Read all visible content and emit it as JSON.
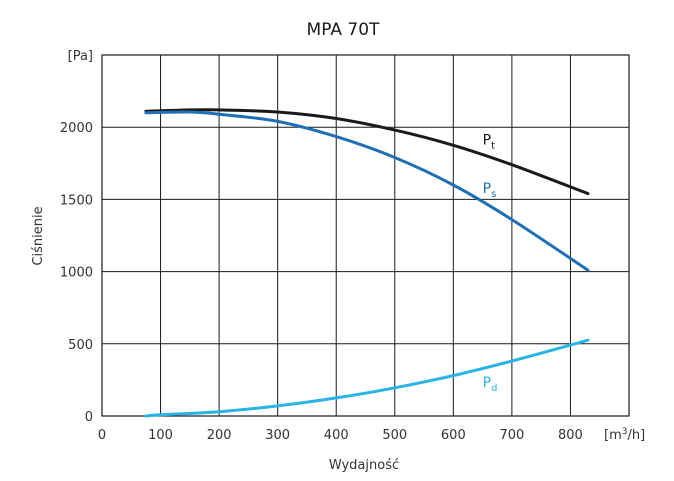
{
  "chart_data": {
    "type": "line",
    "title": "MPA 70T",
    "xlabel": "Wydajność",
    "ylabel": "Ciśnienie",
    "x_unit_label": "[m3/h]",
    "y_unit_label": "[Pa]",
    "xlim": [
      0,
      900
    ],
    "ylim": [
      0,
      2500
    ],
    "x_ticks": [
      0,
      100,
      200,
      300,
      400,
      500,
      600,
      700,
      800
    ],
    "y_ticks": [
      0,
      500,
      1000,
      1500,
      2000
    ],
    "grid": true,
    "series": [
      {
        "name": "Pt",
        "label_main": "P",
        "label_sub": "t",
        "label_at": [
          650,
          1880
        ],
        "color": "#1a1a1a",
        "x": [
          75,
          150,
          200,
          300,
          400,
          500,
          600,
          700,
          830
        ],
        "y": [
          2110,
          2120,
          2120,
          2105,
          2060,
          1980,
          1875,
          1740,
          1540
        ]
      },
      {
        "name": "Ps",
        "label_main": "P",
        "label_sub": "s",
        "label_at": [
          650,
          1545
        ],
        "color": "#1f6fb4",
        "x": [
          75,
          150,
          200,
          300,
          400,
          500,
          600,
          700,
          830
        ],
        "y": [
          2100,
          2105,
          2090,
          2040,
          1935,
          1790,
          1600,
          1360,
          1010
        ]
      },
      {
        "name": "Pd",
        "label_main": "P",
        "label_sub": "d",
        "label_at": [
          650,
          200
        ],
        "color": "#29b3e6",
        "x": [
          75,
          100,
          200,
          300,
          400,
          500,
          600,
          700,
          830
        ],
        "y": [
          0,
          8,
          30,
          70,
          125,
          195,
          280,
          380,
          525
        ]
      }
    ]
  }
}
